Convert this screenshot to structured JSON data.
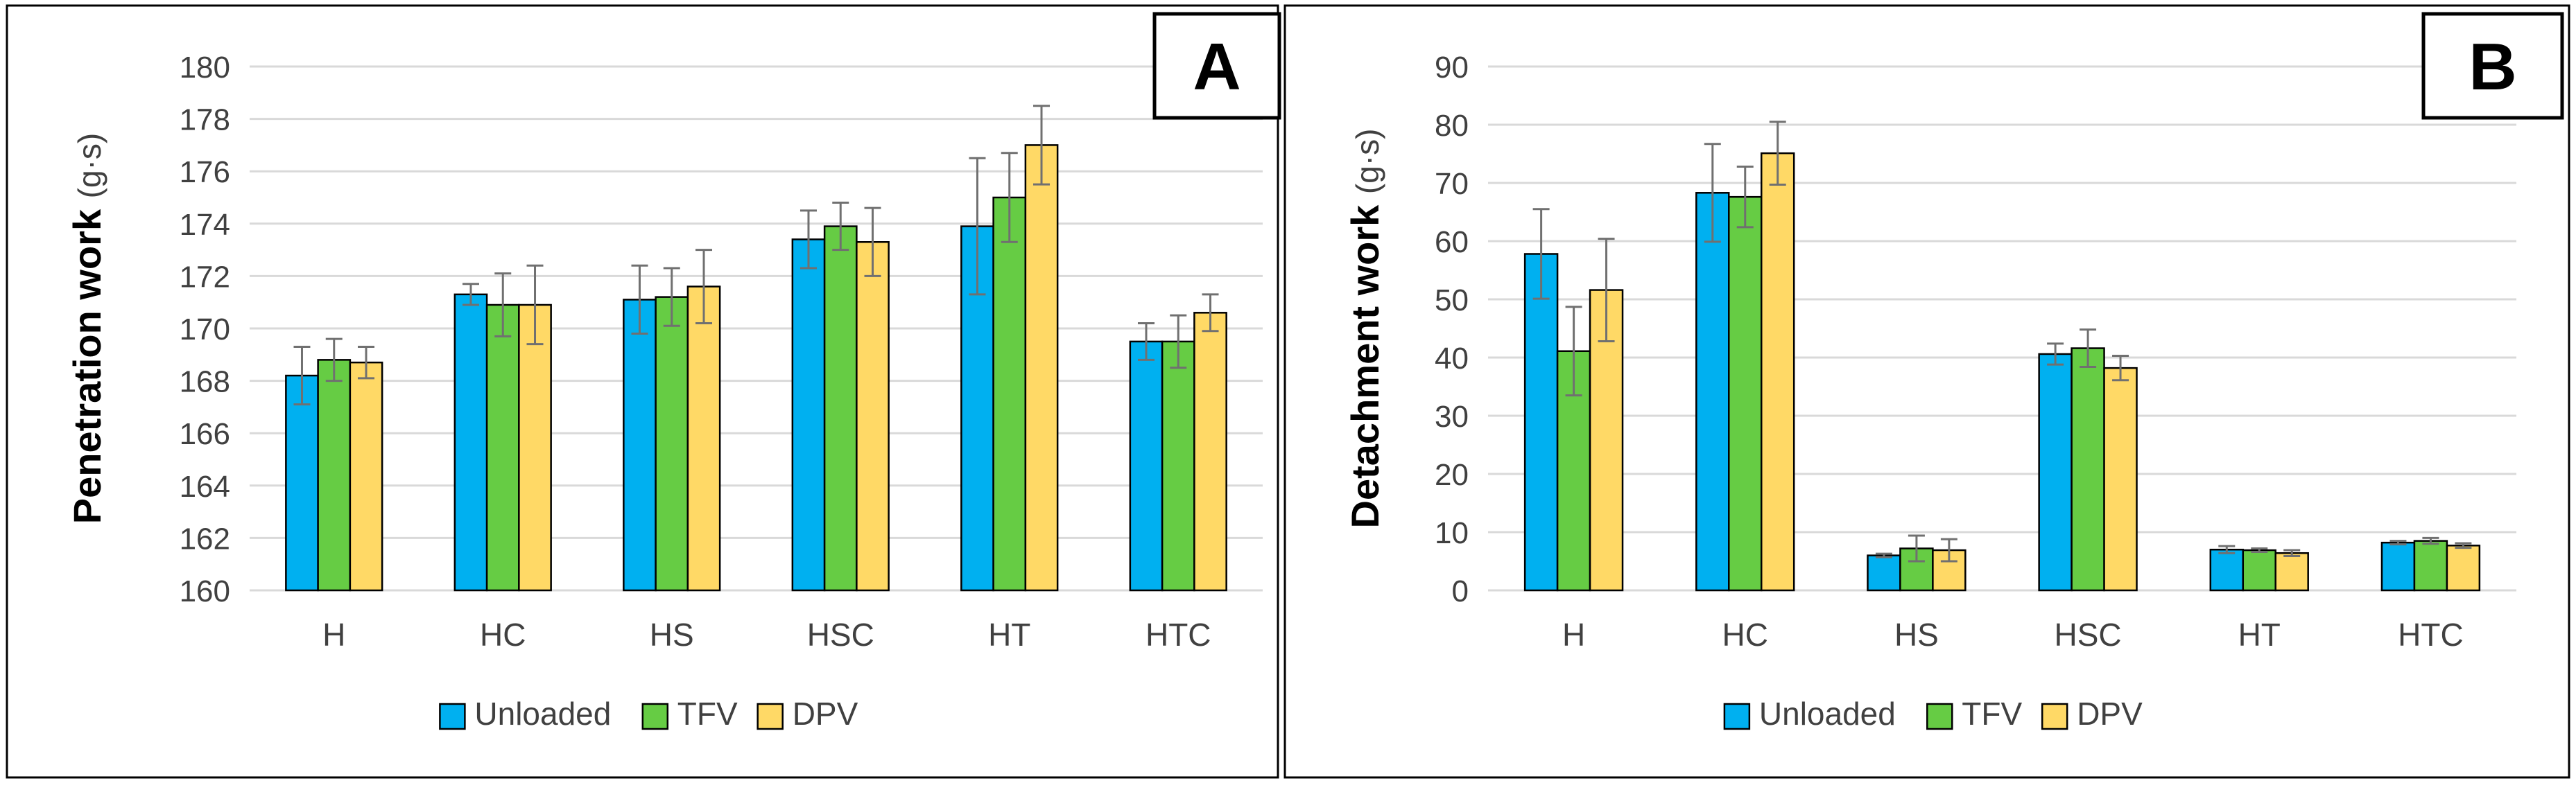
{
  "chart_data": [
    {
      "panel_label": "A",
      "type": "bar",
      "categories": [
        "H",
        "HC",
        "HS",
        "HSC",
        "HT",
        "HTC"
      ],
      "series": [
        {
          "name": "Unloaded",
          "values": [
            168.2,
            171.3,
            171.1,
            173.4,
            173.9,
            169.5
          ],
          "errors": [
            1.1,
            0.4,
            1.3,
            1.1,
            2.6,
            0.7
          ]
        },
        {
          "name": "TFV",
          "values": [
            168.8,
            170.9,
            171.2,
            173.9,
            175.0,
            169.5
          ],
          "errors": [
            0.8,
            1.2,
            1.1,
            0.9,
            1.7,
            1.0
          ]
        },
        {
          "name": "DPV",
          "values": [
            168.7,
            170.9,
            171.6,
            173.3,
            177.0,
            170.6
          ],
          "errors": [
            0.6,
            1.5,
            1.4,
            1.3,
            1.5,
            0.7
          ]
        }
      ],
      "title": "",
      "xlabel": "",
      "ylabel": "Penetration work",
      "ylabel_unit": "(g·s)",
      "ylim": [
        160,
        180
      ],
      "yticks": [
        160,
        162,
        164,
        166,
        168,
        170,
        172,
        174,
        176,
        178,
        180
      ],
      "grid": true,
      "legend_position": "bottom"
    },
    {
      "panel_label": "B",
      "type": "bar",
      "categories": [
        "H",
        "HC",
        "HS",
        "HSC",
        "HT",
        "HTC"
      ],
      "series": [
        {
          "name": "Unloaded",
          "values": [
            57.8,
            68.3,
            6.0,
            40.6,
            7.0,
            8.2
          ],
          "errors": [
            7.7,
            8.4,
            0.3,
            1.8,
            0.6,
            0.3
          ]
        },
        {
          "name": "TFV",
          "values": [
            41.1,
            67.6,
            7.2,
            41.6,
            6.9,
            8.5
          ],
          "errors": [
            7.6,
            5.2,
            2.2,
            3.2,
            0.3,
            0.5
          ]
        },
        {
          "name": "DPV",
          "values": [
            51.6,
            75.1,
            6.9,
            38.2,
            6.4,
            7.7
          ],
          "errors": [
            8.8,
            5.4,
            1.9,
            2.1,
            0.5,
            0.4
          ]
        }
      ],
      "title": "",
      "xlabel": "",
      "ylabel": "Detachment work",
      "ylabel_unit": "(g·s)",
      "ylim": [
        0,
        90
      ],
      "yticks": [
        0,
        10,
        20,
        30,
        40,
        50,
        60,
        70,
        80,
        90
      ],
      "grid": true,
      "legend_position": "bottom"
    }
  ],
  "colors": {
    "Unloaded": "#00b0f0",
    "TFV": "#66cc44",
    "DPV": "#ffd966",
    "bar_stroke": "#000000",
    "grid": "#d9d9d9",
    "error_bar": "#707070",
    "text": "#404040",
    "frame": "#000000"
  }
}
